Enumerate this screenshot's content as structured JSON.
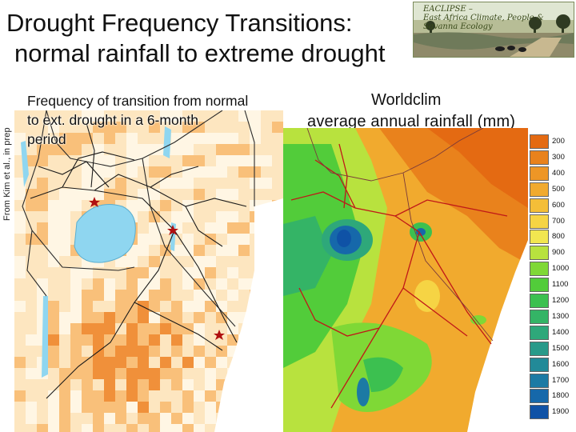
{
  "slide": {
    "title_line1": "Drought Frequency Transitions:",
    "title_line2": "normal rainfall to extreme drought",
    "banner_title_line1": "EACLIPSE –",
    "banner_title_line2": "East Africa Climate, People & Savanna Ecology",
    "credit": "From Kim et al., in prep"
  },
  "left_map": {
    "caption_line1": "Frequency of transition from normal",
    "caption_line2": "to ext. drought in a 6-month",
    "caption_line3": "period",
    "colors": {
      "lake": "#8fd6f0",
      "low": "#fde6c0",
      "mid": "#f9c07a",
      "high": "#f0903a",
      "border": "#333333",
      "road": "#222222",
      "star": "#b01010"
    }
  },
  "right_map": {
    "caption_line1": "Worldclim",
    "caption_line2": "average annual rainfall (mm)",
    "legend": [
      {
        "label": "200",
        "color": "#e46a12"
      },
      {
        "label": "300",
        "color": "#e9821c"
      },
      {
        "label": "400",
        "color": "#ee9626"
      },
      {
        "label": "500",
        "color": "#f1aa2e"
      },
      {
        "label": "600",
        "color": "#f4be38"
      },
      {
        "label": "700",
        "color": "#f6d444"
      },
      {
        "label": "800",
        "color": "#f2e650"
      },
      {
        "label": "900",
        "color": "#b8e23e"
      },
      {
        "label": "1000",
        "color": "#7fd836"
      },
      {
        "label": "1100",
        "color": "#52cc3a"
      },
      {
        "label": "1200",
        "color": "#3cc050"
      },
      {
        "label": "1300",
        "color": "#34b466"
      },
      {
        "label": "1400",
        "color": "#2ea87a"
      },
      {
        "label": "1500",
        "color": "#289a8a"
      },
      {
        "label": "1600",
        "color": "#228a98"
      },
      {
        "label": "1700",
        "color": "#1c7aa4"
      },
      {
        "label": "1800",
        "color": "#1668aa"
      },
      {
        "label": "1900",
        "color": "#0f52a6"
      }
    ]
  }
}
